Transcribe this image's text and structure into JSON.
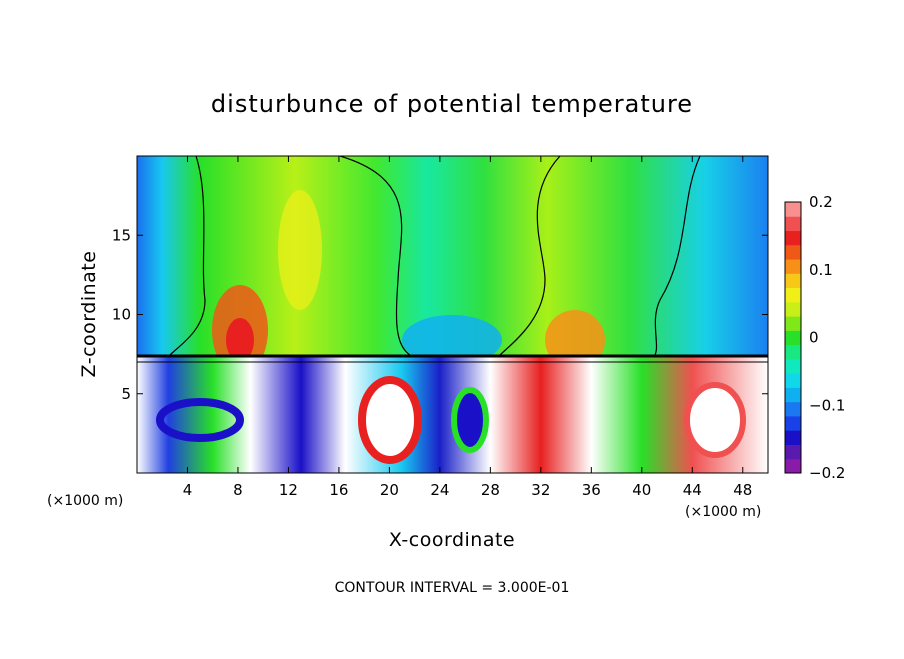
{
  "chart_data": {
    "type": "heatmap",
    "title": "disturbunce of potential temperature",
    "xlabel": "X-coordinate",
    "ylabel": "Z-coordinate",
    "x_unit_left": "(×1000 m)",
    "x_unit_right": "(×1000 m)",
    "footer": "CONTOUR INTERVAL = 3.000E-01",
    "xlim": [
      0,
      50
    ],
    "ylim": [
      0,
      20
    ],
    "x_ticks": [
      4,
      8,
      12,
      16,
      20,
      24,
      28,
      32,
      36,
      40,
      44,
      48
    ],
    "x_tick_labels": [
      "4",
      "8",
      "12",
      "16",
      "20",
      "24",
      "28",
      "32",
      "36",
      "40",
      "44",
      "48"
    ],
    "y_ticks": [
      5,
      10,
      15
    ],
    "y_tick_labels": [
      "5",
      "10",
      "15"
    ],
    "colorbar": {
      "range": [
        -0.2,
        0.2
      ],
      "ticks": [
        0.2,
        0.1,
        0,
        -0.1,
        -0.2
      ],
      "tick_labels": [
        "0.2",
        "0.1",
        "0",
        "−0.1",
        "−0.2"
      ],
      "colors": [
        "#8a1aa8",
        "#5a1ab0",
        "#1a10c8",
        "#1a40e8",
        "#1a78f0",
        "#10b0f0",
        "#10d8e8",
        "#10e8c0",
        "#18e880",
        "#28e028",
        "#80e818",
        "#c8f018",
        "#f0f018",
        "#f8c818",
        "#f89018",
        "#f05818",
        "#e82020",
        "#f05050",
        "#f89090"
      ]
    }
  }
}
